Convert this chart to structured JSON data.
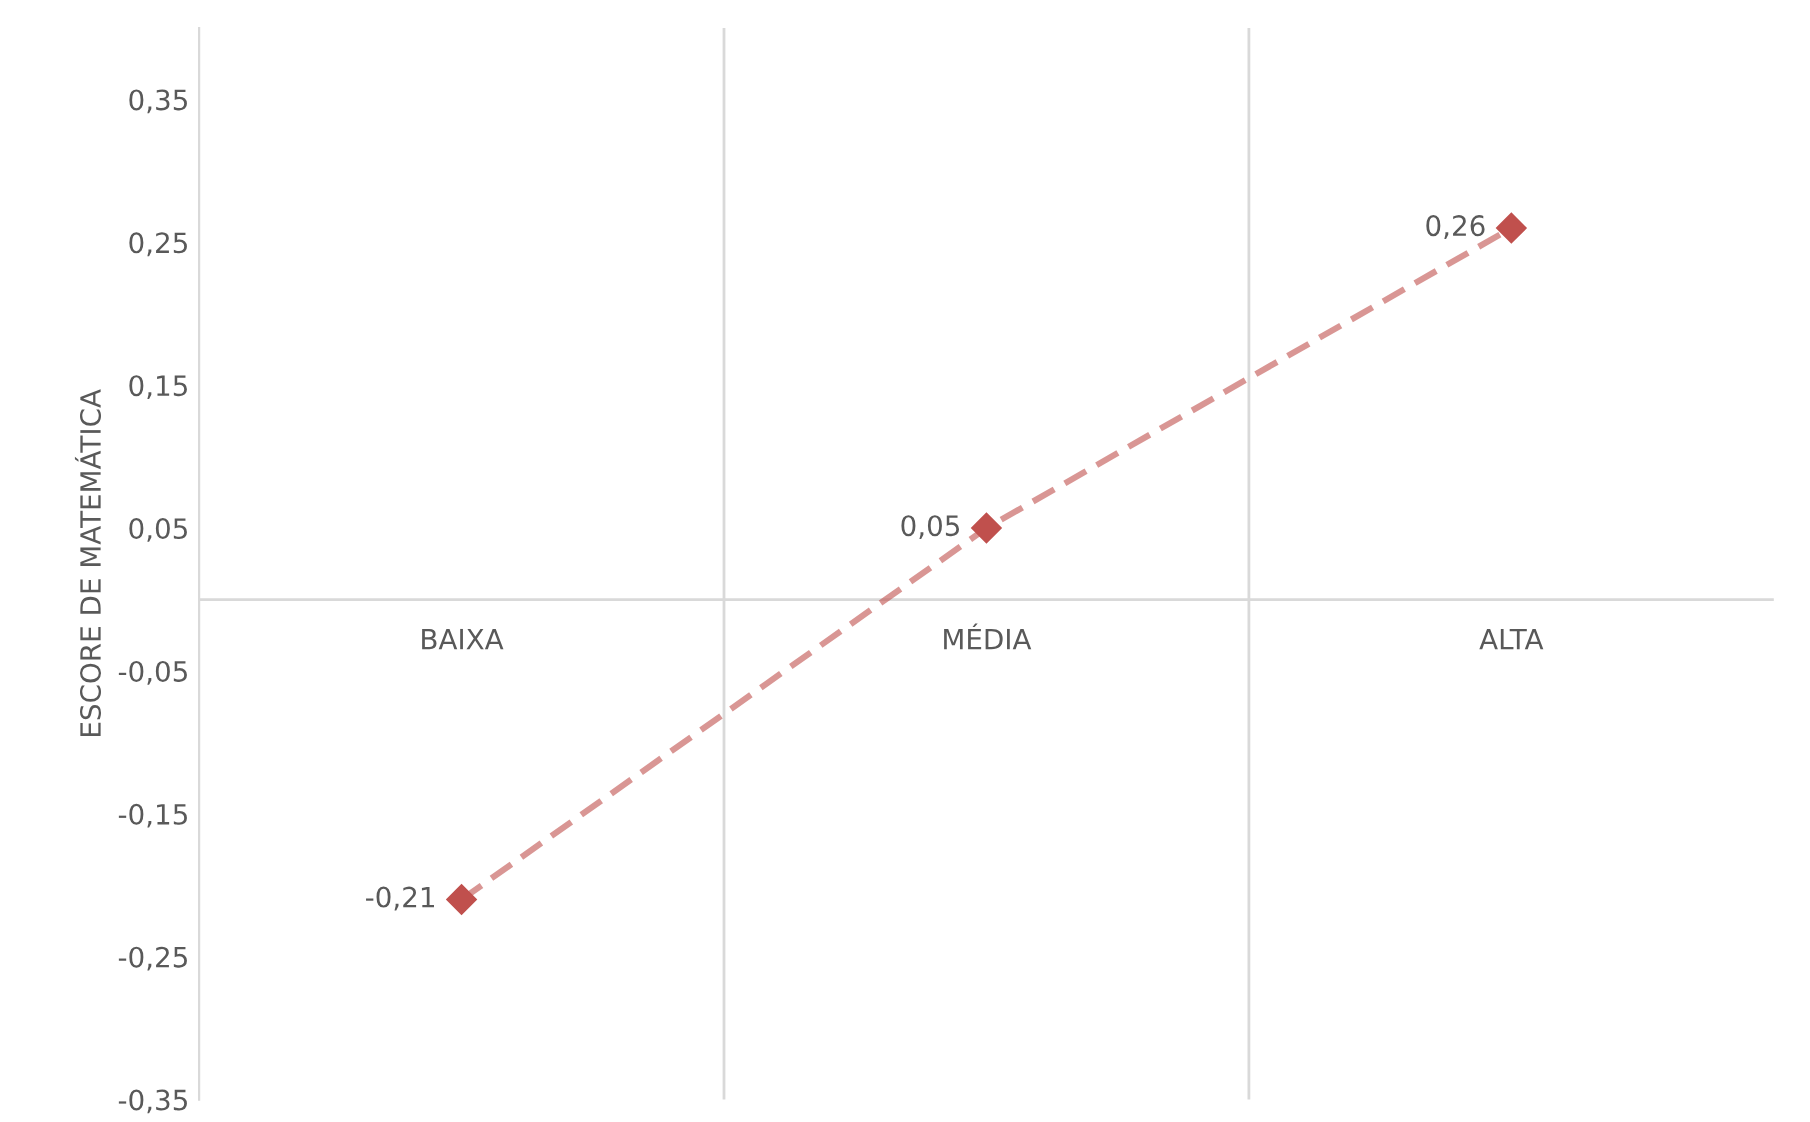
{
  "chart_data": {
    "type": "line",
    "ylabel": "ESCORE DE MATEMÁTICA",
    "categories": [
      "BAIXA",
      "MÉDIA",
      "ALTA"
    ],
    "series": [
      {
        "color": "#c0504d",
        "values": [
          -0.21,
          0.05,
          0.26
        ],
        "value_labels": [
          "-0,21",
          "0,05",
          "0,26"
        ]
      }
    ],
    "ylim": [
      -0.35,
      0.4
    ],
    "yticks": [
      {
        "value": -0.35,
        "label": "-0,35"
      },
      {
        "value": -0.25,
        "label": "-0,25"
      },
      {
        "value": -0.15,
        "label": "-0,15"
      },
      {
        "value": -0.05,
        "label": "-0,05"
      },
      {
        "value": 0.05,
        "label": "0,05"
      },
      {
        "value": 0.15,
        "label": "0,15"
      },
      {
        "value": 0.25,
        "label": "0,25"
      },
      {
        "value": 0.35,
        "label": "0,35"
      }
    ],
    "grid": "x",
    "marker": "diamond",
    "line_style": "dashed",
    "legend": false
  }
}
